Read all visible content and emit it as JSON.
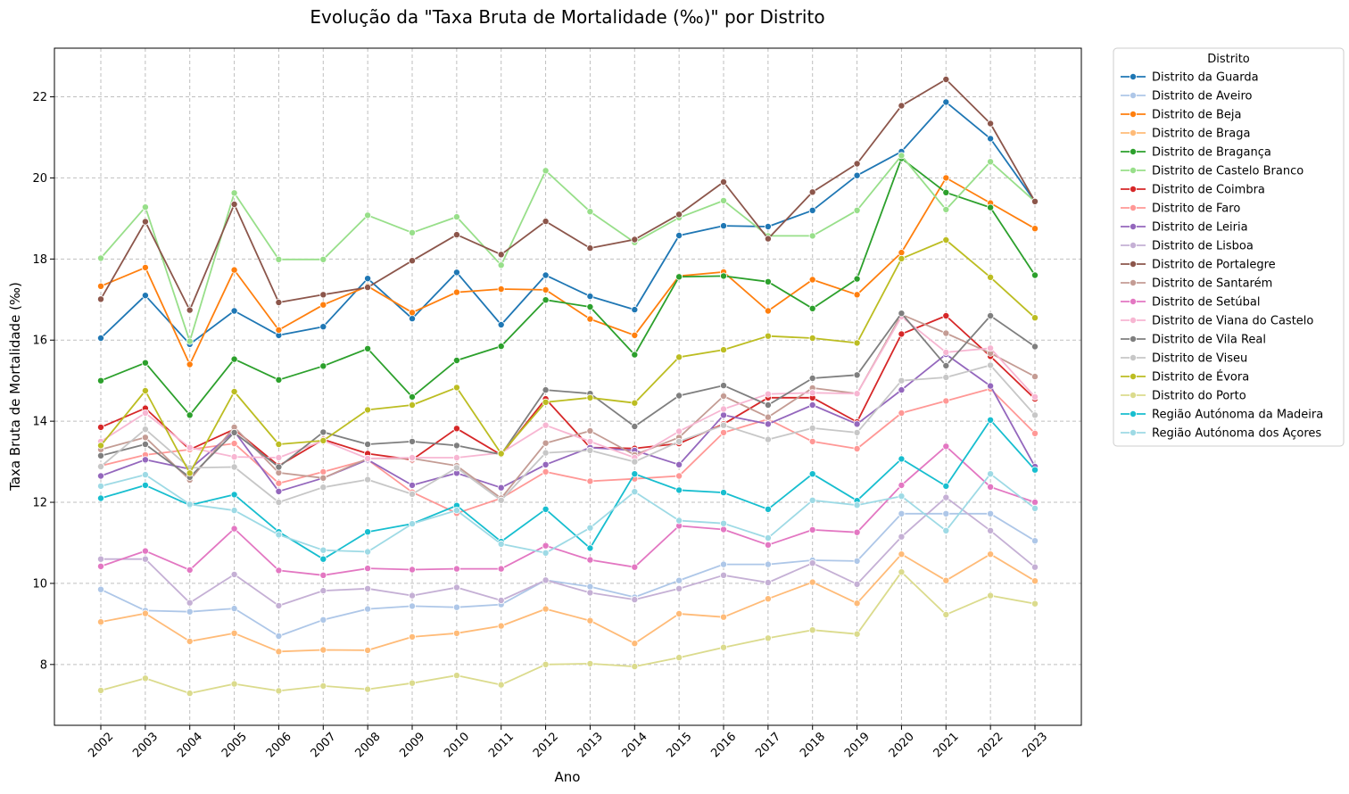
{
  "chart_data": {
    "type": "line",
    "title": "Evolução da \"Taxa Bruta de Mortalidade (‰)\" por Distrito",
    "xlabel": "Ano",
    "ylabel": "Taxa Bruta de Mortalidade (‰)",
    "ylim": [
      6.5,
      23.2
    ],
    "yticks": [
      8,
      10,
      12,
      14,
      16,
      18,
      20,
      22
    ],
    "grid": true,
    "legend_title": "Distrito",
    "legend_position": "outside-top-right",
    "x": [
      "2002",
      "2003",
      "2004",
      "2005",
      "2006",
      "2007",
      "2008",
      "2009",
      "2010",
      "2011",
      "2012",
      "2013",
      "2014",
      "2015",
      "2016",
      "2017",
      "2018",
      "2019",
      "2020",
      "2021",
      "2022",
      "2023"
    ],
    "series": [
      {
        "name": "Distrito da Guarda",
        "color": "#1f77b4",
        "values": [
          16.05,
          17.1,
          15.9,
          16.72,
          16.12,
          16.33,
          17.52,
          16.53,
          17.67,
          16.38,
          17.6,
          17.08,
          16.75,
          18.58,
          18.82,
          18.8,
          19.2,
          20.06,
          20.65,
          21.87,
          20.97,
          19.42
        ]
      },
      {
        "name": "Distrito de Aveiro",
        "color": "#aec7e8",
        "values": [
          9.85,
          9.33,
          9.3,
          9.38,
          8.7,
          9.1,
          9.37,
          9.44,
          9.41,
          9.48,
          10.08,
          9.92,
          9.66,
          10.07,
          10.47,
          10.47,
          10.57,
          10.55,
          11.72,
          11.72,
          11.72,
          11.05
        ]
      },
      {
        "name": "Distrito de Beja",
        "color": "#ff7f0e",
        "values": [
          17.33,
          17.79,
          15.4,
          17.73,
          16.25,
          16.87,
          17.33,
          16.68,
          17.18,
          17.26,
          17.24,
          16.52,
          16.12,
          17.58,
          17.68,
          16.72,
          17.49,
          17.12,
          18.16,
          20.0,
          19.38,
          18.75
        ]
      },
      {
        "name": "Distrito de Braga",
        "color": "#ffbb78",
        "values": [
          9.05,
          9.26,
          8.57,
          8.77,
          8.32,
          8.36,
          8.35,
          8.68,
          8.77,
          8.95,
          9.37,
          9.08,
          8.52,
          9.25,
          9.17,
          9.62,
          10.03,
          9.51,
          10.72,
          10.07,
          10.72,
          10.06
        ]
      },
      {
        "name": "Distrito de Bragança",
        "color": "#2ca02c",
        "values": [
          15.0,
          15.44,
          14.15,
          15.53,
          15.02,
          15.36,
          15.79,
          14.6,
          15.5,
          15.85,
          16.99,
          16.82,
          15.64,
          17.56,
          17.58,
          17.44,
          16.78,
          17.51,
          20.48,
          19.64,
          19.27,
          17.6
        ]
      },
      {
        "name": "Distrito de Castelo Branco",
        "color": "#98df8a",
        "values": [
          18.02,
          19.28,
          15.97,
          19.63,
          17.99,
          17.99,
          19.08,
          18.65,
          19.04,
          17.85,
          20.18,
          19.17,
          18.41,
          19.02,
          19.44,
          18.57,
          18.57,
          19.2,
          20.55,
          19.22,
          20.4,
          19.42
        ]
      },
      {
        "name": "Distrito de Coimbra",
        "color": "#d62728",
        "values": [
          13.85,
          14.32,
          13.3,
          13.8,
          12.9,
          13.55,
          13.2,
          13.05,
          13.82,
          13.17,
          14.55,
          13.35,
          13.33,
          13.45,
          13.93,
          14.58,
          14.58,
          13.98,
          16.15,
          16.6,
          15.6,
          14.55
        ]
      },
      {
        "name": "Distrito de Faro",
        "color": "#ff9896",
        "values": [
          12.9,
          13.17,
          13.3,
          13.45,
          12.47,
          12.75,
          13.05,
          12.25,
          11.73,
          12.1,
          12.75,
          12.52,
          12.58,
          12.65,
          13.72,
          14.05,
          13.5,
          13.32,
          14.2,
          14.5,
          14.8,
          13.7
        ]
      },
      {
        "name": "Distrito de Leiria",
        "color": "#9467bd",
        "values": [
          12.65,
          13.05,
          12.82,
          13.75,
          12.27,
          12.6,
          13.05,
          12.42,
          12.72,
          12.36,
          12.93,
          13.35,
          13.28,
          12.93,
          14.15,
          13.93,
          14.4,
          13.93,
          14.77,
          15.65,
          14.87,
          12.88
        ]
      },
      {
        "name": "Distrito de Lisboa",
        "color": "#c5b0d5",
        "values": [
          10.6,
          10.6,
          9.52,
          10.22,
          9.45,
          9.82,
          9.87,
          9.7,
          9.9,
          9.58,
          10.08,
          9.77,
          9.6,
          9.87,
          10.2,
          10.02,
          10.5,
          9.98,
          11.15,
          12.12,
          11.3,
          10.4
        ]
      },
      {
        "name": "Distrito de Portalegre",
        "color": "#8c564b",
        "values": [
          17.01,
          18.92,
          16.74,
          19.35,
          16.93,
          17.12,
          17.3,
          17.96,
          18.6,
          18.11,
          18.93,
          18.27,
          18.48,
          19.1,
          19.9,
          18.5,
          19.65,
          20.35,
          21.78,
          22.43,
          21.34,
          19.42
        ]
      },
      {
        "name": "Distrito de Santarém",
        "color": "#c49c94",
        "values": [
          13.3,
          13.6,
          12.55,
          13.85,
          12.73,
          12.6,
          13.08,
          13.08,
          12.9,
          12.1,
          13.46,
          13.76,
          13.17,
          13.6,
          14.62,
          14.1,
          14.82,
          14.68,
          16.63,
          16.17,
          15.68,
          15.1
        ]
      },
      {
        "name": "Distrito de Setúbal",
        "color": "#e377c2",
        "values": [
          10.42,
          10.8,
          10.33,
          11.35,
          10.32,
          10.2,
          10.37,
          10.34,
          10.36,
          10.36,
          10.93,
          10.58,
          10.4,
          11.42,
          11.33,
          10.95,
          11.32,
          11.26,
          12.42,
          13.38,
          12.38,
          12.0
        ]
      },
      {
        "name": "Distrito de Viana do Castelo",
        "color": "#f7b6d2",
        "values": [
          13.5,
          14.2,
          13.35,
          13.12,
          13.1,
          13.52,
          13.08,
          13.1,
          13.1,
          13.22,
          13.9,
          13.5,
          13.1,
          13.75,
          14.3,
          14.67,
          14.7,
          14.68,
          16.58,
          15.7,
          15.8,
          14.6
        ]
      },
      {
        "name": "Distrito de Vila Real",
        "color": "#7f7f7f",
        "values": [
          13.15,
          13.43,
          12.62,
          13.72,
          12.87,
          13.73,
          13.43,
          13.5,
          13.4,
          13.18,
          14.77,
          14.68,
          13.87,
          14.63,
          14.88,
          14.4,
          15.06,
          15.14,
          16.66,
          15.37,
          16.6,
          15.84
        ]
      },
      {
        "name": "Distrito de Viseu",
        "color": "#c7c7c7",
        "values": [
          12.88,
          13.8,
          12.85,
          12.87,
          12.0,
          12.37,
          12.56,
          12.2,
          12.85,
          12.05,
          13.22,
          13.28,
          13.0,
          13.5,
          13.9,
          13.55,
          13.83,
          13.72,
          15.0,
          15.08,
          15.38,
          14.15
        ]
      },
      {
        "name": "Distrito de Évora",
        "color": "#bcbd22",
        "values": [
          13.4,
          14.75,
          12.72,
          14.73,
          13.43,
          13.52,
          14.28,
          14.4,
          14.83,
          13.2,
          14.47,
          14.58,
          14.45,
          15.58,
          15.76,
          16.1,
          16.05,
          15.93,
          18.01,
          18.47,
          17.55,
          16.55
        ]
      },
      {
        "name": "Distrito do Porto",
        "color": "#dbdb8d",
        "values": [
          7.36,
          7.66,
          7.29,
          7.52,
          7.35,
          7.47,
          7.39,
          7.54,
          7.73,
          7.5,
          8.0,
          8.02,
          7.95,
          8.17,
          8.42,
          8.65,
          8.85,
          8.75,
          10.28,
          9.23,
          9.7,
          9.5
        ]
      },
      {
        "name": "Região Autónoma da Madeira",
        "color": "#17becf",
        "values": [
          12.1,
          12.42,
          11.93,
          12.19,
          11.27,
          10.6,
          11.27,
          11.47,
          11.92,
          11.03,
          11.83,
          10.87,
          12.7,
          12.3,
          12.24,
          11.83,
          12.7,
          12.04,
          13.07,
          12.4,
          14.03,
          12.8
        ]
      },
      {
        "name": "Região Autónoma dos Açores",
        "color": "#9edae5",
        "values": [
          12.4,
          12.68,
          11.95,
          11.8,
          11.2,
          10.82,
          10.78,
          11.47,
          11.8,
          10.97,
          10.75,
          11.37,
          12.26,
          11.55,
          11.48,
          11.12,
          12.05,
          11.93,
          12.15,
          11.3,
          12.7,
          11.85
        ]
      }
    ]
  }
}
